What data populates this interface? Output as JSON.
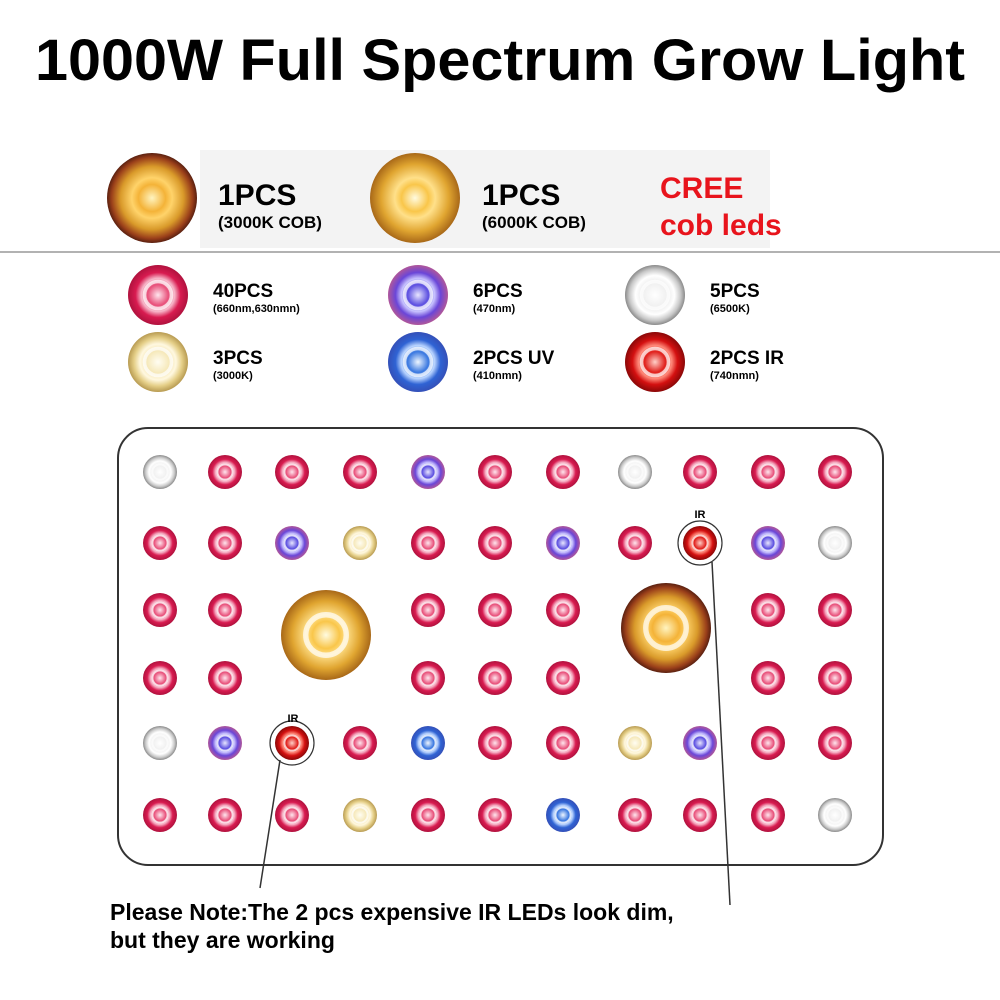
{
  "title": "1000W Full Spectrum Grow Light",
  "cob": [
    {
      "count": "1PCS",
      "spec": "(3000K COB)"
    },
    {
      "count": "1PCS",
      "spec": "(6000K COB)"
    }
  ],
  "brand": [
    "CREE",
    "cob leds"
  ],
  "leds": [
    {
      "count": "40PCS",
      "spec": "(660nm,630nmn)"
    },
    {
      "count": "6PCS",
      "spec": "(470nm)"
    },
    {
      "count": "5PCS",
      "spec": "(6500K)"
    },
    {
      "count": "3PCS",
      "spec": "(3000K)"
    },
    {
      "count": "2PCS UV",
      "spec": "(410nmn)"
    },
    {
      "count": "2PCS IR",
      "spec": "(740nmn)"
    }
  ],
  "board": {
    "labels": [
      "IR",
      "IR"
    ]
  },
  "note": [
    "Please Note:The 2 pcs expensive IR LEDs look dim,",
    "but they are working"
  ]
}
